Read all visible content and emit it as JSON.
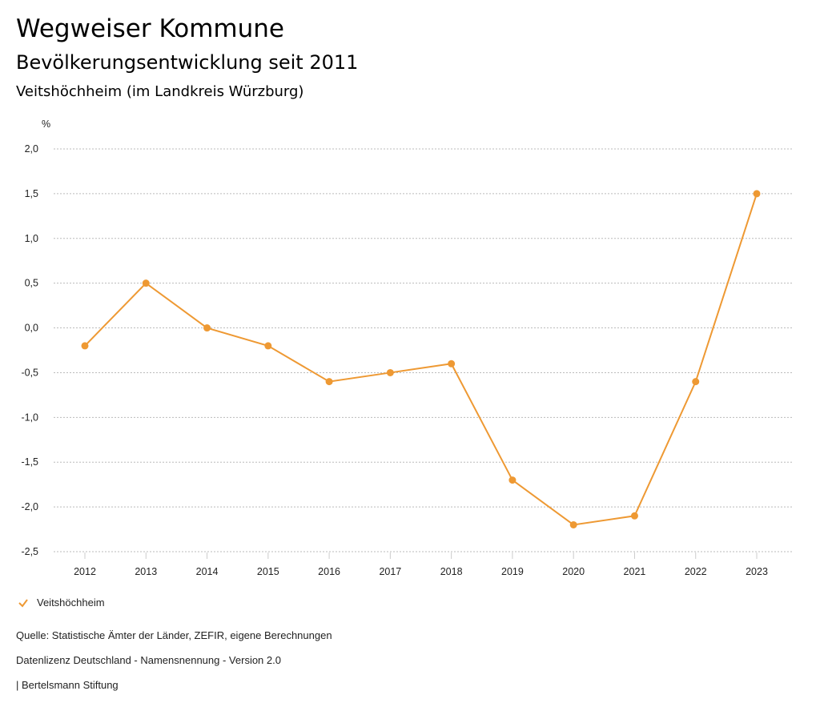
{
  "header": {
    "title": "Wegweiser Kommune",
    "subtitle": "Bevölkerungsentwicklung seit 2011",
    "region": "Veitshöchheim (im Landkreis Würzburg)"
  },
  "chart_data": {
    "type": "line",
    "ylabel": "%",
    "xlabel": "",
    "ylim": [
      -2.5,
      2.0
    ],
    "yticks": [
      2.0,
      1.5,
      1.0,
      0.5,
      0.0,
      -0.5,
      -1.0,
      -1.5,
      -2.0,
      -2.5
    ],
    "ytick_labels": [
      "2,0",
      "1,5",
      "1,0",
      "0,5",
      "0,0",
      "-0,5",
      "-1,0",
      "-1,5",
      "-2,0",
      "-2,5"
    ],
    "categories": [
      "2012",
      "2013",
      "2014",
      "2015",
      "2016",
      "2017",
      "2018",
      "2019",
      "2020",
      "2021",
      "2022",
      "2023"
    ],
    "series": [
      {
        "name": "Veitshöchheim",
        "color": "#ee9933",
        "values": [
          -0.2,
          0.5,
          0.0,
          -0.2,
          -0.6,
          -0.5,
          -0.4,
          -1.7,
          -2.2,
          -2.1,
          -0.6,
          1.5
        ]
      }
    ],
    "grid": true,
    "legend": "bottom-left"
  },
  "footer": {
    "source": "Quelle: Statistische Ämter der Länder, ZEFIR, eigene Berechnungen",
    "license": "Datenlizenz Deutschland - Namensnennung - Version 2.0",
    "publisher": "| Bertelsmann Stiftung"
  }
}
